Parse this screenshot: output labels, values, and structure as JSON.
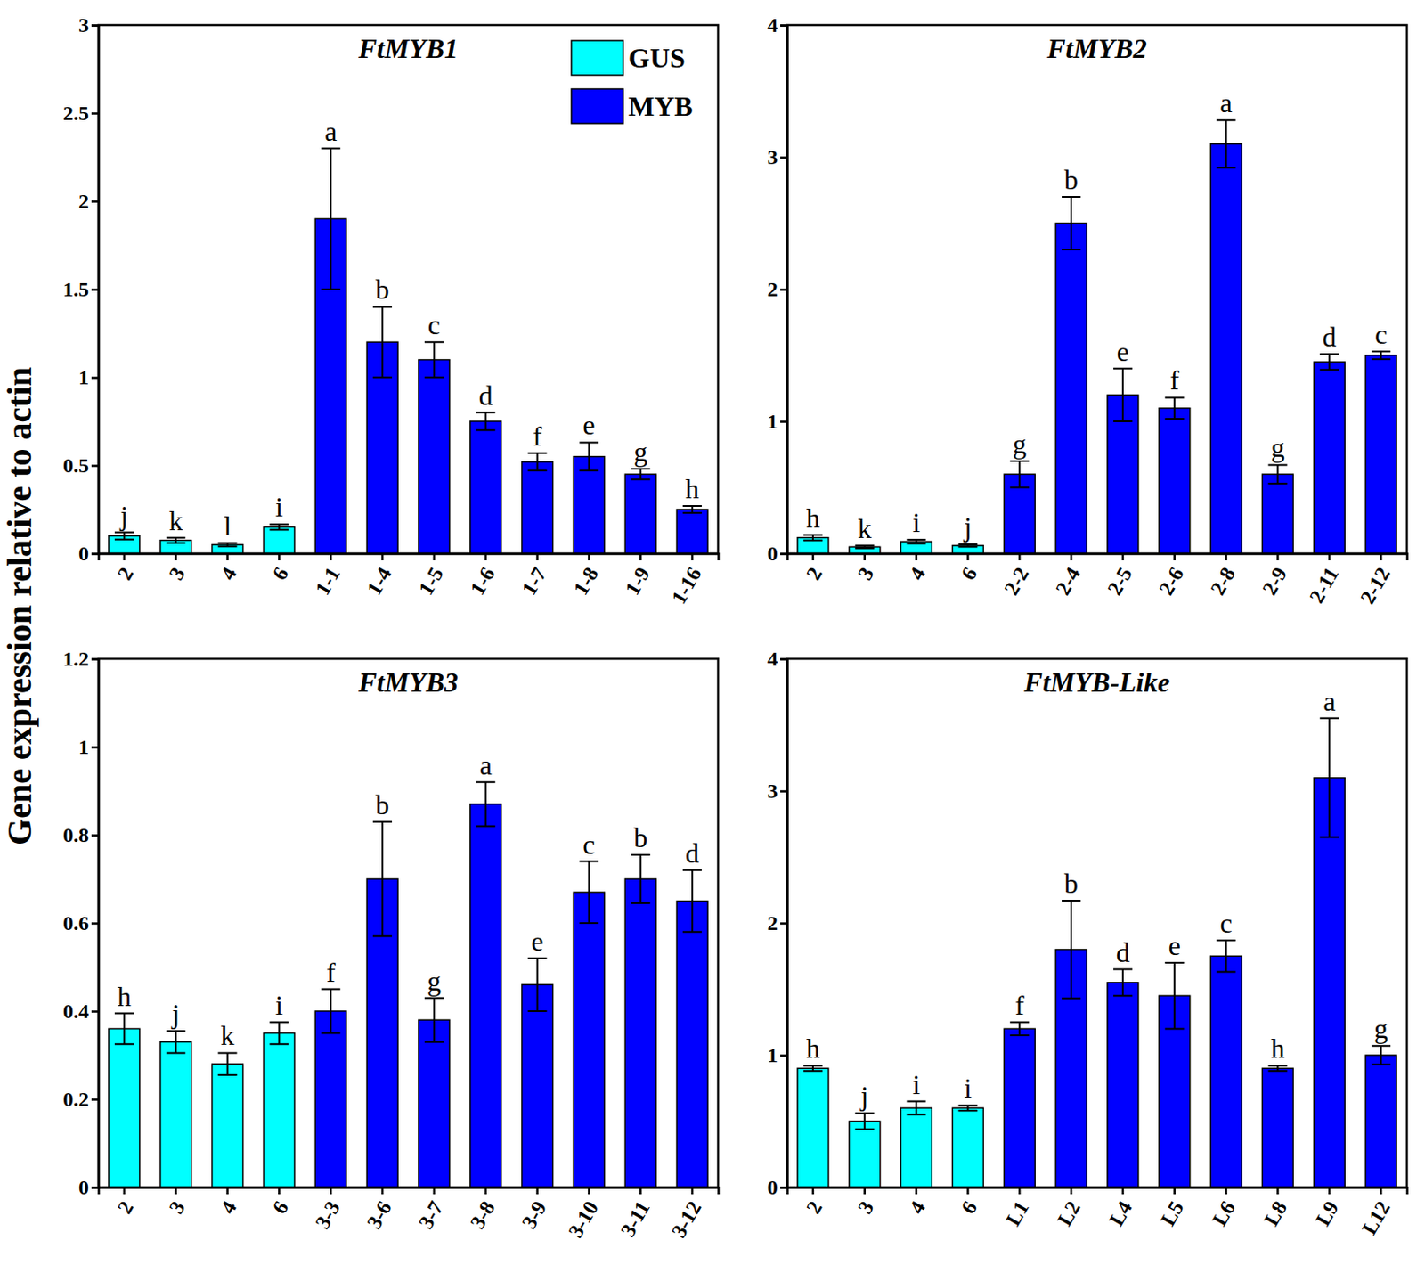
{
  "chart_data": [
    {
      "type": "bar",
      "title": "FtMYB1",
      "ylabel": "Gene expression relative to actin",
      "legend": "upper right",
      "categories": [
        "2",
        "3",
        "4",
        "6",
        "1-1",
        "1-4",
        "1-5",
        "1-6",
        "1-7",
        "1-8",
        "1-9",
        "1-16"
      ],
      "series": [
        {
          "name": "GUS",
          "color": "#00ffff",
          "values": [
            0.1,
            0.075,
            0.05,
            0.15,
            null,
            null,
            null,
            null,
            null,
            null,
            null,
            null
          ],
          "errors": [
            0.02,
            0.015,
            0.01,
            0.015,
            null,
            null,
            null,
            null,
            null,
            null,
            null,
            null
          ]
        },
        {
          "name": "MYB",
          "color": "#0000ff",
          "values": [
            null,
            null,
            null,
            null,
            1.9,
            1.2,
            1.1,
            0.75,
            0.52,
            0.55,
            0.45,
            0.25
          ],
          "errors": [
            null,
            null,
            null,
            null,
            0.4,
            0.2,
            0.1,
            0.05,
            0.05,
            0.08,
            0.03,
            0.02
          ]
        }
      ],
      "annotations": [
        "j",
        "k",
        "l",
        "i",
        "a",
        "b",
        "c",
        "d",
        "f",
        "e",
        "g",
        "h"
      ],
      "ylim": [
        0,
        3
      ],
      "yticks": [
        0,
        0.5,
        1,
        1.5,
        2,
        2.5,
        3
      ]
    },
    {
      "type": "bar",
      "title": "FtMYB2",
      "categories": [
        "2",
        "3",
        "4",
        "6",
        "2-2",
        "2-4",
        "2-5",
        "2-6",
        "2-8",
        "2-9",
        "2-11",
        "2-12"
      ],
      "series": [
        {
          "name": "GUS",
          "color": "#00ffff",
          "values": [
            0.12,
            0.05,
            0.09,
            0.06,
            null,
            null,
            null,
            null,
            null,
            null,
            null,
            null
          ],
          "errors": [
            0.02,
            0.01,
            0.015,
            0.01,
            null,
            null,
            null,
            null,
            null,
            null,
            null,
            null
          ]
        },
        {
          "name": "MYB",
          "color": "#0000ff",
          "values": [
            null,
            null,
            null,
            null,
            0.6,
            2.5,
            1.2,
            1.1,
            3.1,
            0.6,
            1.45,
            1.5
          ],
          "errors": [
            null,
            null,
            null,
            null,
            0.1,
            0.2,
            0.2,
            0.08,
            0.18,
            0.07,
            0.06,
            0.03
          ]
        }
      ],
      "annotations": [
        "h",
        "k",
        "i",
        "j",
        "g",
        "b",
        "e",
        "f",
        "a",
        "g",
        "d",
        "c"
      ],
      "ylim": [
        0,
        4
      ],
      "yticks": [
        0,
        1,
        2,
        3,
        4
      ]
    },
    {
      "type": "bar",
      "title": "FtMYB3",
      "categories": [
        "2",
        "3",
        "4",
        "6",
        "3-3",
        "3-6",
        "3-7",
        "3-8",
        "3-9",
        "3-10",
        "3-11",
        "3-12"
      ],
      "series": [
        {
          "name": "GUS",
          "color": "#00ffff",
          "values": [
            0.36,
            0.33,
            0.28,
            0.35,
            null,
            null,
            null,
            null,
            null,
            null,
            null,
            null
          ],
          "errors": [
            0.035,
            0.025,
            0.025,
            0.025,
            null,
            null,
            null,
            null,
            null,
            null,
            null,
            null
          ]
        },
        {
          "name": "MYB",
          "color": "#0000ff",
          "values": [
            null,
            null,
            null,
            null,
            0.4,
            0.7,
            0.38,
            0.87,
            0.46,
            0.67,
            0.7,
            0.65
          ],
          "errors": [
            null,
            null,
            null,
            null,
            0.05,
            0.13,
            0.05,
            0.05,
            0.06,
            0.07,
            0.055,
            0.07
          ]
        }
      ],
      "annotations": [
        "h",
        "j",
        "k",
        "i",
        "f",
        "b",
        "g",
        "a",
        "e",
        "c",
        "b",
        "d"
      ],
      "ylim": [
        0,
        1.2
      ],
      "yticks": [
        0,
        0.2,
        0.4,
        0.6,
        0.8,
        1,
        1.2
      ]
    },
    {
      "type": "bar",
      "title": "FtMYB-Like",
      "categories": [
        "2",
        "3",
        "4",
        "6",
        "L1",
        "L2",
        "L4",
        "L5",
        "L6",
        "L8",
        "L9",
        "L12"
      ],
      "series": [
        {
          "name": "GUS",
          "color": "#00ffff",
          "values": [
            0.9,
            0.5,
            0.6,
            0.6,
            null,
            null,
            null,
            null,
            null,
            null,
            null,
            null
          ],
          "errors": [
            0.02,
            0.06,
            0.05,
            0.02,
            null,
            null,
            null,
            null,
            null,
            null,
            null,
            null
          ]
        },
        {
          "name": "MYB",
          "color": "#0000ff",
          "values": [
            null,
            null,
            null,
            null,
            1.2,
            1.8,
            1.55,
            1.45,
            1.75,
            0.9,
            3.1,
            1.0
          ],
          "errors": [
            null,
            null,
            null,
            null,
            0.05,
            0.37,
            0.1,
            0.25,
            0.12,
            0.02,
            0.45,
            0.07
          ]
        }
      ],
      "annotations": [
        "h",
        "j",
        "i",
        "i",
        "f",
        "b",
        "d",
        "e",
        "c",
        "h",
        "a",
        "g"
      ],
      "ylim": [
        0,
        4
      ],
      "yticks": [
        0,
        1,
        2,
        3,
        4
      ]
    }
  ]
}
